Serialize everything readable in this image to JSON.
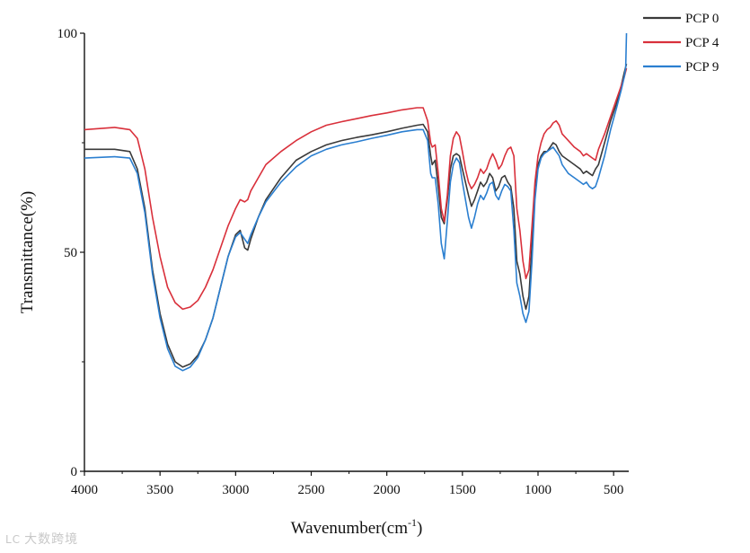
{
  "chart_data": {
    "type": "line",
    "title": "",
    "xlabel": "Wavenumber(cm",
    "xlabel_sup": "-1",
    "xlabel_tail": ")",
    "ylabel": "Transmittance(%)",
    "xlim": [
      4000,
      400
    ],
    "ylim": [
      0,
      100
    ],
    "x_ticks": [
      4000,
      3500,
      3000,
      2500,
      2000,
      1500,
      1000,
      500
    ],
    "y_ticks": [
      0,
      50,
      100
    ],
    "legend_position": "top-right",
    "series": [
      {
        "name": "PCP 0",
        "color": "#3a3a3a",
        "points": [
          [
            4000,
            73.5
          ],
          [
            3800,
            73.5
          ],
          [
            3700,
            73
          ],
          [
            3650,
            69
          ],
          [
            3600,
            60
          ],
          [
            3550,
            46
          ],
          [
            3500,
            36
          ],
          [
            3450,
            29
          ],
          [
            3400,
            25
          ],
          [
            3350,
            23.8
          ],
          [
            3300,
            24.5
          ],
          [
            3250,
            26.5
          ],
          [
            3200,
            30
          ],
          [
            3150,
            35
          ],
          [
            3100,
            42
          ],
          [
            3050,
            49
          ],
          [
            3000,
            54
          ],
          [
            2970,
            55
          ],
          [
            2940,
            51
          ],
          [
            2920,
            50.5
          ],
          [
            2900,
            53
          ],
          [
            2850,
            58
          ],
          [
            2800,
            62
          ],
          [
            2700,
            67
          ],
          [
            2600,
            71
          ],
          [
            2500,
            73
          ],
          [
            2400,
            74.5
          ],
          [
            2300,
            75.5
          ],
          [
            2200,
            76.2
          ],
          [
            2100,
            76.8
          ],
          [
            2000,
            77.5
          ],
          [
            1900,
            78.3
          ],
          [
            1800,
            79
          ],
          [
            1760,
            79.2
          ],
          [
            1730,
            77.5
          ],
          [
            1710,
            72
          ],
          [
            1700,
            70
          ],
          [
            1680,
            71
          ],
          [
            1660,
            65
          ],
          [
            1640,
            58
          ],
          [
            1620,
            56.5
          ],
          [
            1600,
            62
          ],
          [
            1580,
            69
          ],
          [
            1560,
            72
          ],
          [
            1540,
            72.5
          ],
          [
            1520,
            72
          ],
          [
            1500,
            69
          ],
          [
            1480,
            66
          ],
          [
            1460,
            63
          ],
          [
            1440,
            60.5
          ],
          [
            1420,
            62
          ],
          [
            1400,
            64
          ],
          [
            1380,
            66
          ],
          [
            1360,
            65
          ],
          [
            1340,
            66
          ],
          [
            1320,
            68
          ],
          [
            1300,
            67
          ],
          [
            1280,
            64
          ],
          [
            1260,
            65
          ],
          [
            1240,
            67
          ],
          [
            1220,
            67.5
          ],
          [
            1200,
            66
          ],
          [
            1180,
            65
          ],
          [
            1160,
            60
          ],
          [
            1140,
            48
          ],
          [
            1120,
            45
          ],
          [
            1100,
            40
          ],
          [
            1080,
            37
          ],
          [
            1060,
            40
          ],
          [
            1040,
            52
          ],
          [
            1020,
            65
          ],
          [
            1000,
            70
          ],
          [
            980,
            72
          ],
          [
            960,
            73
          ],
          [
            940,
            73
          ],
          [
            920,
            74
          ],
          [
            900,
            75
          ],
          [
            880,
            74.5
          ],
          [
            860,
            73
          ],
          [
            840,
            72
          ],
          [
            800,
            71
          ],
          [
            760,
            70
          ],
          [
            720,
            69
          ],
          [
            700,
            68
          ],
          [
            680,
            68.5
          ],
          [
            660,
            68
          ],
          [
            640,
            67.5
          ],
          [
            620,
            69
          ],
          [
            600,
            70
          ],
          [
            560,
            75
          ],
          [
            520,
            80
          ],
          [
            480,
            84
          ],
          [
            450,
            88
          ],
          [
            430,
            91
          ],
          [
            415,
            93
          ]
        ]
      },
      {
        "name": "PCP 4",
        "color": "#d9303b",
        "points": [
          [
            4000,
            78
          ],
          [
            3800,
            78.5
          ],
          [
            3700,
            78
          ],
          [
            3650,
            76
          ],
          [
            3600,
            69
          ],
          [
            3550,
            58
          ],
          [
            3500,
            49
          ],
          [
            3450,
            42
          ],
          [
            3400,
            38.5
          ],
          [
            3350,
            37
          ],
          [
            3300,
            37.5
          ],
          [
            3250,
            39
          ],
          [
            3200,
            42
          ],
          [
            3150,
            46
          ],
          [
            3100,
            51
          ],
          [
            3050,
            56
          ],
          [
            3000,
            60
          ],
          [
            2970,
            62
          ],
          [
            2940,
            61.5
          ],
          [
            2920,
            62
          ],
          [
            2900,
            64
          ],
          [
            2850,
            67
          ],
          [
            2800,
            70
          ],
          [
            2700,
            73
          ],
          [
            2600,
            75.5
          ],
          [
            2500,
            77.5
          ],
          [
            2400,
            79
          ],
          [
            2300,
            79.8
          ],
          [
            2200,
            80.5
          ],
          [
            2100,
            81.2
          ],
          [
            2000,
            81.8
          ],
          [
            1900,
            82.5
          ],
          [
            1800,
            83
          ],
          [
            1760,
            83
          ],
          [
            1730,
            80
          ],
          [
            1710,
            75
          ],
          [
            1700,
            74
          ],
          [
            1680,
            74.5
          ],
          [
            1660,
            68
          ],
          [
            1640,
            60
          ],
          [
            1620,
            57
          ],
          [
            1600,
            63
          ],
          [
            1580,
            72
          ],
          [
            1560,
            76
          ],
          [
            1540,
            77.5
          ],
          [
            1520,
            76.5
          ],
          [
            1500,
            73
          ],
          [
            1480,
            69
          ],
          [
            1460,
            66
          ],
          [
            1440,
            64.5
          ],
          [
            1420,
            65.5
          ],
          [
            1400,
            67
          ],
          [
            1380,
            69
          ],
          [
            1360,
            68
          ],
          [
            1340,
            69
          ],
          [
            1320,
            71
          ],
          [
            1300,
            72.5
          ],
          [
            1280,
            71
          ],
          [
            1260,
            69
          ],
          [
            1240,
            70
          ],
          [
            1220,
            72
          ],
          [
            1200,
            73.5
          ],
          [
            1180,
            74
          ],
          [
            1160,
            72
          ],
          [
            1140,
            60
          ],
          [
            1120,
            55
          ],
          [
            1100,
            48
          ],
          [
            1080,
            44
          ],
          [
            1060,
            46
          ],
          [
            1040,
            56
          ],
          [
            1020,
            66
          ],
          [
            1000,
            72
          ],
          [
            980,
            75
          ],
          [
            960,
            77
          ],
          [
            940,
            78
          ],
          [
            920,
            78.5
          ],
          [
            900,
            79.5
          ],
          [
            880,
            80
          ],
          [
            860,
            79
          ],
          [
            840,
            77
          ],
          [
            800,
            75.5
          ],
          [
            760,
            74
          ],
          [
            720,
            73
          ],
          [
            700,
            72
          ],
          [
            680,
            72.5
          ],
          [
            660,
            72
          ],
          [
            640,
            71.5
          ],
          [
            620,
            71
          ],
          [
            600,
            73.5
          ],
          [
            560,
            77
          ],
          [
            520,
            81
          ],
          [
            480,
            85
          ],
          [
            450,
            88
          ],
          [
            430,
            90
          ],
          [
            415,
            92
          ]
        ]
      },
      {
        "name": "PCP 9",
        "color": "#2b7fd0",
        "points": [
          [
            4000,
            71.5
          ],
          [
            3800,
            71.8
          ],
          [
            3700,
            71.5
          ],
          [
            3650,
            68
          ],
          [
            3600,
            59
          ],
          [
            3550,
            45
          ],
          [
            3500,
            35
          ],
          [
            3450,
            28
          ],
          [
            3400,
            24
          ],
          [
            3350,
            23
          ],
          [
            3300,
            23.8
          ],
          [
            3250,
            26
          ],
          [
            3200,
            30
          ],
          [
            3150,
            35
          ],
          [
            3100,
            42
          ],
          [
            3050,
            49
          ],
          [
            3000,
            53.5
          ],
          [
            2970,
            54.5
          ],
          [
            2940,
            53
          ],
          [
            2920,
            52
          ],
          [
            2900,
            54
          ],
          [
            2850,
            58
          ],
          [
            2800,
            61.5
          ],
          [
            2700,
            66
          ],
          [
            2600,
            69.5
          ],
          [
            2500,
            72
          ],
          [
            2400,
            73.5
          ],
          [
            2300,
            74.5
          ],
          [
            2200,
            75.2
          ],
          [
            2100,
            76
          ],
          [
            2000,
            76.7
          ],
          [
            1900,
            77.5
          ],
          [
            1800,
            78
          ],
          [
            1760,
            78
          ],
          [
            1730,
            75.5
          ],
          [
            1710,
            68
          ],
          [
            1700,
            67
          ],
          [
            1680,
            67
          ],
          [
            1660,
            61
          ],
          [
            1640,
            52
          ],
          [
            1620,
            48.5
          ],
          [
            1600,
            57
          ],
          [
            1580,
            66
          ],
          [
            1560,
            70
          ],
          [
            1540,
            71.5
          ],
          [
            1520,
            70.5
          ],
          [
            1500,
            66
          ],
          [
            1480,
            62
          ],
          [
            1460,
            58
          ],
          [
            1440,
            55.5
          ],
          [
            1420,
            58
          ],
          [
            1400,
            61
          ],
          [
            1380,
            63
          ],
          [
            1360,
            62
          ],
          [
            1340,
            63.5
          ],
          [
            1320,
            65.5
          ],
          [
            1300,
            66
          ],
          [
            1280,
            63
          ],
          [
            1260,
            62
          ],
          [
            1240,
            64
          ],
          [
            1220,
            65.5
          ],
          [
            1200,
            65
          ],
          [
            1180,
            64
          ],
          [
            1160,
            55
          ],
          [
            1140,
            43
          ],
          [
            1120,
            40
          ],
          [
            1100,
            36
          ],
          [
            1080,
            34
          ],
          [
            1060,
            36.5
          ],
          [
            1040,
            48
          ],
          [
            1020,
            62
          ],
          [
            1000,
            69
          ],
          [
            980,
            71.5
          ],
          [
            960,
            72.5
          ],
          [
            940,
            73
          ],
          [
            920,
            73.5
          ],
          [
            900,
            74
          ],
          [
            880,
            73
          ],
          [
            860,
            72
          ],
          [
            840,
            70
          ],
          [
            800,
            68
          ],
          [
            760,
            67
          ],
          [
            720,
            66
          ],
          [
            700,
            65.5
          ],
          [
            680,
            66
          ],
          [
            660,
            65
          ],
          [
            640,
            64.5
          ],
          [
            620,
            65
          ],
          [
            600,
            67
          ],
          [
            560,
            72
          ],
          [
            520,
            78
          ],
          [
            480,
            83
          ],
          [
            450,
            87
          ],
          [
            430,
            90
          ],
          [
            420,
            92
          ],
          [
            415,
            100
          ]
        ]
      }
    ]
  },
  "watermark": {
    "logo": "LC",
    "text": "大数跨境"
  }
}
